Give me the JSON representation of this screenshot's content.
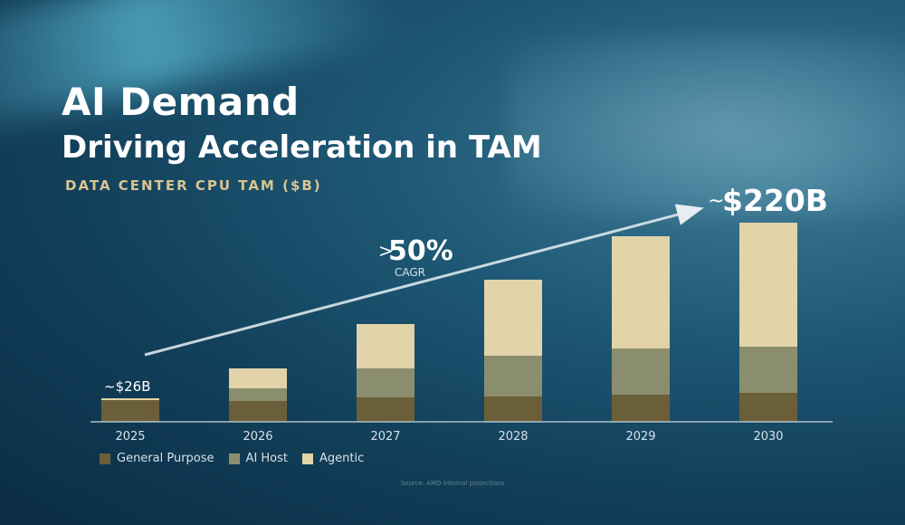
{
  "slide": {
    "title": "AI Demand",
    "subtitle": "Driving Acceleration in TAM",
    "kicker": "DATA CENTER CPU TAM ($B)",
    "source": "Source: AMD internal projections"
  },
  "callouts": {
    "cagr_prefix": ">",
    "cagr_value": "50%",
    "cagr_label": "CAGR",
    "start_label": "~$26B",
    "end_prefix": "~",
    "end_value": "$220B"
  },
  "chart_data": {
    "type": "bar",
    "stacked": true,
    "title": "DATA CENTER CPU TAM ($B)",
    "xlabel": "",
    "ylabel": "",
    "categories": [
      "2025",
      "2026",
      "2027",
      "2028",
      "2029",
      "2030"
    ],
    "series": [
      {
        "name": "General Purpose",
        "color": "#6b5f3a",
        "values": [
          24,
          23,
          27,
          28,
          30,
          32
        ]
      },
      {
        "name": "AI Host",
        "color": "#8b8e6e",
        "values": [
          0,
          14,
          32,
          45,
          51,
          51
        ]
      },
      {
        "name": "Agentic",
        "color": "#e2d3a9",
        "values": [
          2,
          22,
          49,
          84,
          124,
          137
        ]
      }
    ],
    "totals_labeled": {
      "2025": "~$26B",
      "2030": "~$220B"
    },
    "ylim": [
      0,
      220
    ],
    "grid": false,
    "legend_position": "bottom-left"
  }
}
